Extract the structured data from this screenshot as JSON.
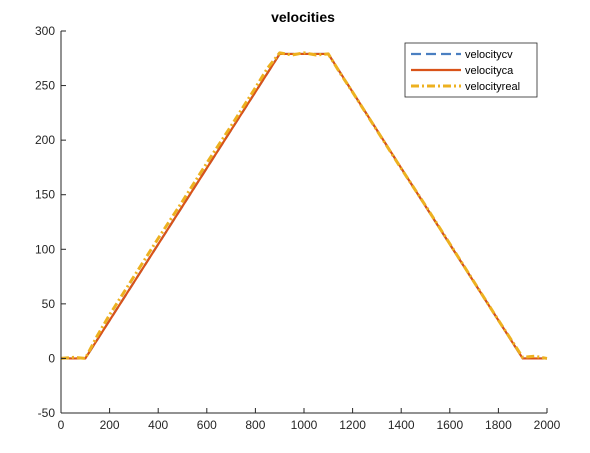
{
  "chart_data": {
    "type": "line",
    "title": "velocities",
    "xlabel": "",
    "ylabel": "",
    "xlim": [
      0,
      2000
    ],
    "ylim": [
      -50,
      300
    ],
    "xticks": [
      0,
      200,
      400,
      600,
      800,
      1000,
      1200,
      1400,
      1600,
      1800,
      2000
    ],
    "yticks": [
      -50,
      0,
      50,
      100,
      150,
      200,
      250,
      300
    ],
    "grid": false,
    "legend_position": "top-right",
    "series": [
      {
        "name": "velocitycv",
        "color": "#4A7FC1",
        "style": "dashed",
        "x": [
          0,
          100,
          900,
          1100,
          1900,
          2000
        ],
        "y": [
          0,
          0,
          279,
          279,
          0,
          0
        ]
      },
      {
        "name": "velocityca",
        "color": "#D95319",
        "style": "solid",
        "x": [
          0,
          100,
          900,
          1100,
          1900,
          2000
        ],
        "y": [
          0,
          0,
          279,
          279,
          0,
          0
        ]
      },
      {
        "name": "velocityreal",
        "color": "#EDB120",
        "style": "dashdot",
        "x": [
          0,
          50,
          100,
          150,
          200,
          300,
          400,
          500,
          600,
          700,
          800,
          850,
          900,
          950,
          1000,
          1050,
          1100,
          1150,
          1200,
          1300,
          1400,
          1500,
          1600,
          1700,
          1800,
          1850,
          1900,
          1950,
          2000
        ],
        "y": [
          0,
          1,
          0,
          21,
          40,
          75,
          110,
          144,
          179,
          213,
          248,
          266,
          280,
          278,
          280,
          278,
          279,
          261,
          244,
          209,
          174,
          140,
          105,
          70,
          35,
          18,
          1,
          2,
          0
        ]
      }
    ]
  }
}
